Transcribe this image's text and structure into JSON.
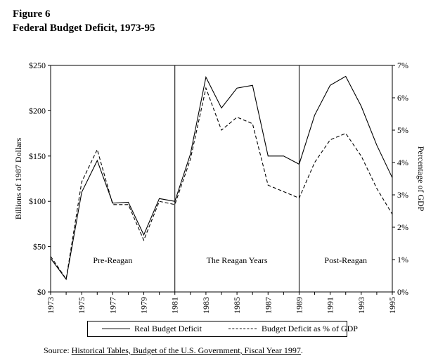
{
  "figure": {
    "label": "Figure 6",
    "title": "Federal Budget Deficit, 1973-95"
  },
  "chart_data": {
    "type": "line",
    "title": "Federal Budget Deficit, 1973-95",
    "xlabel": "",
    "ylabel": "Billions of 1987 Dollars",
    "y2label": "Percentage of GDP",
    "x": [
      1973,
      1974,
      1975,
      1976,
      1977,
      1978,
      1979,
      1980,
      1981,
      1982,
      1983,
      1984,
      1985,
      1986,
      1987,
      1988,
      1989,
      1990,
      1991,
      1992,
      1993,
      1994,
      1995
    ],
    "x_tick_labels": [
      "1973",
      "1975",
      "1977",
      "1979",
      "1981",
      "1983",
      "1985",
      "1987",
      "1989",
      "1991",
      "1993",
      "1995"
    ],
    "ylim": [
      0,
      250
    ],
    "y_tick_labels": [
      "$0",
      "$50",
      "$100",
      "$150",
      "$200",
      "$250"
    ],
    "y2lim": [
      0,
      7
    ],
    "y2_tick_labels": [
      "0%",
      "1%",
      "2%",
      "3%",
      "4%",
      "5%",
      "6%",
      "7%"
    ],
    "series": [
      {
        "name": "Real Budget Deficit",
        "axis": "left",
        "style": "solid",
        "values": [
          37,
          14,
          110,
          145,
          98,
          99,
          63,
          103,
          100,
          152,
          237,
          203,
          225,
          228,
          150,
          150,
          141,
          195,
          228,
          238,
          205,
          162,
          126
        ]
      },
      {
        "name": "Budget Deficit as % of GDP",
        "axis": "right",
        "style": "dashed",
        "values": [
          1.1,
          0.4,
          3.4,
          4.4,
          2.7,
          2.7,
          1.6,
          2.8,
          2.7,
          4.1,
          6.3,
          5.0,
          5.4,
          5.2,
          3.3,
          3.1,
          2.9,
          4.0,
          4.7,
          4.9,
          4.2,
          3.2,
          2.4
        ]
      }
    ],
    "dividers": [
      1981,
      1989
    ],
    "annotations": [
      {
        "text": "Pre-Reagan",
        "x": 1977,
        "y": 35
      },
      {
        "text": "The Reagan Years",
        "x": 1985,
        "y": 35
      },
      {
        "text": "Post-Reagan",
        "x": 1992,
        "y": 35
      }
    ],
    "grid": false,
    "legend_position": "bottom"
  },
  "source": {
    "prefix": "Source: ",
    "text": "Historical Tables, Budget of the U.S. Government, Fiscal Year 1997",
    "suffix": "."
  }
}
